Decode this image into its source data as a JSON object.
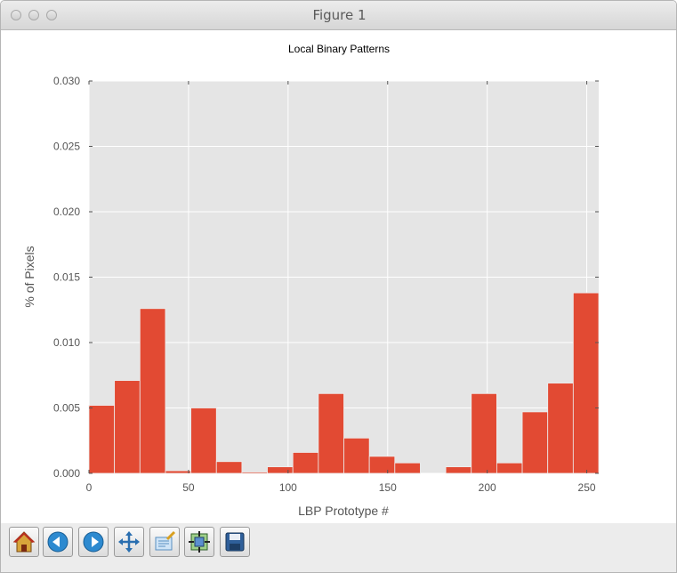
{
  "window": {
    "title": "Figure 1"
  },
  "toolbar": {
    "buttons": [
      {
        "name": "home-icon"
      },
      {
        "name": "back-icon"
      },
      {
        "name": "forward-icon"
      },
      {
        "name": "pan-icon"
      },
      {
        "name": "zoom-icon"
      },
      {
        "name": "subplots-icon"
      },
      {
        "name": "save-icon"
      }
    ]
  },
  "chart_data": {
    "type": "bar",
    "title": "Local Binary Patterns",
    "xlabel": "LBP Prototype #",
    "ylabel": "% of Pixels",
    "xlim": [
      0,
      256
    ],
    "ylim": [
      0,
      0.03
    ],
    "xticks": [
      0,
      50,
      100,
      150,
      200,
      250
    ],
    "yticks": [
      "0.000",
      "0.005",
      "0.010",
      "0.015",
      "0.020",
      "0.025",
      "0.030"
    ],
    "bin_width": 12.8,
    "bins": [
      0,
      12.8,
      25.6,
      38.4,
      51.2,
      64,
      76.8,
      89.6,
      102.4,
      115.2,
      128,
      140.8,
      153.6,
      166.4,
      179.2,
      192,
      204.8,
      217.6,
      230.4,
      243.2
    ],
    "values": [
      0.0052,
      0.0071,
      0.0126,
      0.0002,
      0.005,
      0.0009,
      0.0001,
      0.0005,
      0.0016,
      0.0061,
      0.0027,
      0.0013,
      0.0008,
      0.0,
      0.0005,
      0.0061,
      0.0008,
      0.0047,
      0.0069,
      0.0138
    ],
    "bar_color": "#e24a33",
    "background": "#e5e5e5",
    "grid": true
  }
}
